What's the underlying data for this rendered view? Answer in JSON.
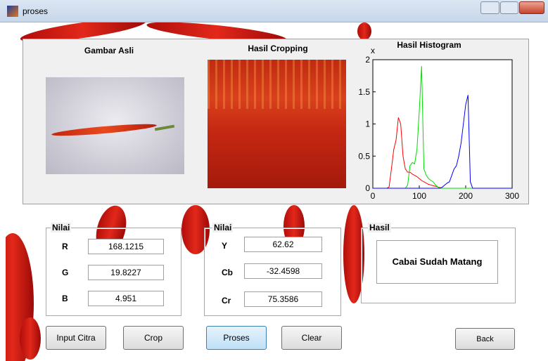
{
  "window": {
    "title": "proses"
  },
  "images": {
    "original_title": "Gambar Asli",
    "crop_title": "Hasil Cropping"
  },
  "chart_data": {
    "type": "line",
    "title": "Hasil Histogram",
    "y_exponent_label": "x",
    "x": [
      0,
      5,
      10,
      15,
      20,
      25,
      30,
      35,
      40,
      45,
      50,
      55,
      60,
      65,
      70,
      75,
      80,
      85,
      90,
      95,
      100,
      105,
      110,
      115,
      120,
      125,
      130,
      135,
      140,
      145,
      150,
      155,
      160,
      165,
      170,
      175,
      180,
      185,
      190,
      195,
      200,
      205,
      210,
      215,
      220,
      225,
      230,
      235,
      240,
      245,
      250,
      255,
      260,
      265,
      270,
      275,
      280,
      285,
      290,
      295,
      300
    ],
    "series": [
      {
        "color": "#ff0000",
        "values": [
          0,
          0,
          0,
          0,
          0,
          0,
          0,
          0.02,
          0.3,
          0.6,
          0.75,
          1.1,
          1.0,
          0.5,
          0.3,
          0.25,
          0.25,
          0.22,
          0.2,
          0.18,
          0.15,
          0.12,
          0.1,
          0.08,
          0.06,
          0.05,
          0.04,
          0.03,
          0.02,
          0.01,
          0,
          0,
          0,
          0,
          0,
          0,
          0,
          0,
          0,
          0,
          0,
          0,
          0,
          0,
          0,
          0,
          0,
          0,
          0,
          0,
          0,
          0,
          0,
          0,
          0,
          0,
          0,
          0,
          0,
          0,
          0
        ]
      },
      {
        "color": "#00dd00",
        "values": [
          0,
          0,
          0,
          0,
          0,
          0,
          0,
          0,
          0,
          0,
          0,
          0,
          0,
          0,
          0,
          0.05,
          0.35,
          0.4,
          0.38,
          0.6,
          1.2,
          1.9,
          0.3,
          0.2,
          0.15,
          0.12,
          0.1,
          0.05,
          0.02,
          0,
          0,
          0,
          0,
          0,
          0,
          0,
          0,
          0,
          0,
          0,
          0,
          0,
          0,
          0,
          0,
          0,
          0,
          0,
          0,
          0,
          0,
          0,
          0,
          0,
          0,
          0,
          0,
          0,
          0,
          0,
          0
        ]
      },
      {
        "color": "#0000ff",
        "values": [
          0,
          0,
          0,
          0,
          0,
          0,
          0,
          0,
          0,
          0,
          0,
          0,
          0,
          0,
          0,
          0,
          0,
          0,
          0,
          0,
          0,
          0,
          0,
          0,
          0,
          0,
          0,
          0,
          0,
          0,
          0.02,
          0.05,
          0.08,
          0.1,
          0.2,
          0.3,
          0.35,
          0.5,
          0.7,
          1.0,
          1.3,
          1.45,
          0.1,
          0,
          0,
          0,
          0,
          0,
          0,
          0,
          0,
          0,
          0,
          0,
          0,
          0,
          0,
          0,
          0,
          0,
          0
        ]
      }
    ],
    "xlim": [
      0,
      300
    ],
    "xticks": [
      0,
      100,
      200,
      300
    ],
    "ylim": [
      0,
      2
    ],
    "yticks": [
      0,
      0.5,
      1,
      1.5,
      2
    ]
  },
  "rgb_panel": {
    "title": "Nilai",
    "rows": [
      [
        "R",
        "168.1215"
      ],
      [
        "G",
        "19.8227"
      ],
      [
        "B",
        "4.951"
      ]
    ]
  },
  "ycbcr_panel": {
    "title": "Nilai",
    "rows": [
      [
        "Y",
        "62.62"
      ],
      [
        "Cb",
        "-32.4598"
      ],
      [
        "Cr",
        "75.3586"
      ]
    ]
  },
  "result_panel": {
    "title": "Hasil",
    "text": "Cabai Sudah Matang"
  },
  "buttons": [
    "Input Citra",
    "Crop",
    "Proses",
    "Clear",
    "Back"
  ]
}
